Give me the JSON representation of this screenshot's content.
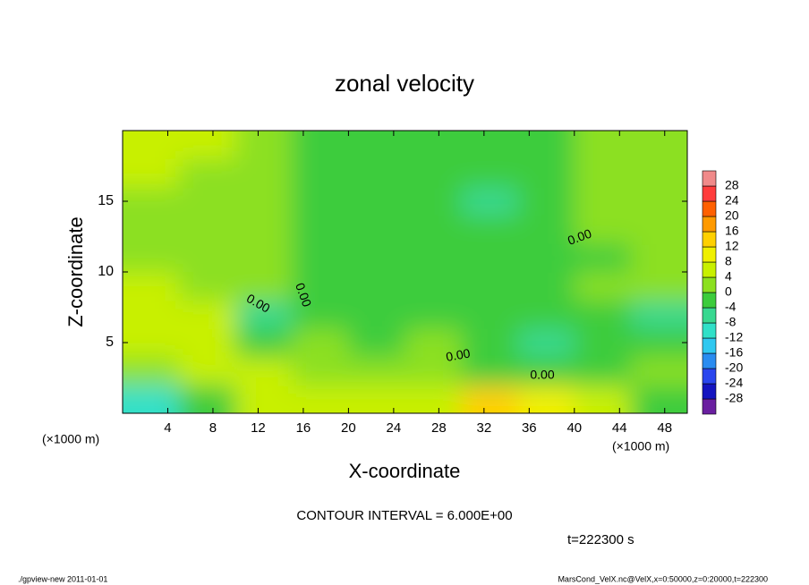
{
  "chart_data": {
    "type": "heatmap",
    "title": "zonal velocity",
    "xlabel": "X-coordinate",
    "ylabel": "Z-coordinate",
    "x_unit_label": "(×1000 m)",
    "y_unit_label": "(×1000 m)",
    "xlim": [
      0,
      50
    ],
    "ylim": [
      0,
      20
    ],
    "xticks": [
      4,
      8,
      12,
      16,
      20,
      24,
      28,
      32,
      36,
      40,
      44,
      48
    ],
    "yticks": [
      5,
      10,
      15
    ],
    "x": [
      2.5,
      7.5,
      12.5,
      17.5,
      22.5,
      27.5,
      32.5,
      37.5,
      42.5,
      47.5
    ],
    "y": [
      1,
      3,
      5,
      7,
      9,
      11,
      13,
      15,
      17,
      19
    ],
    "values": [
      [
        -10,
        -4,
        4,
        4,
        4,
        4,
        14,
        8,
        4,
        -2
      ],
      [
        2,
        4,
        4,
        2,
        2,
        0,
        -2,
        -2,
        -2,
        0
      ],
      [
        6,
        6,
        -4,
        2,
        -2,
        0,
        -4,
        -6,
        -2,
        -2
      ],
      [
        7,
        4,
        -6,
        -2,
        -2,
        -2,
        -3,
        -2,
        -2,
        -5
      ],
      [
        4,
        2,
        2,
        -2,
        -2,
        -3,
        -3,
        -3,
        0,
        2
      ],
      [
        2,
        2,
        2,
        -2,
        -2,
        -2,
        -3,
        -3,
        -1,
        2
      ],
      [
        3,
        3,
        2,
        -2,
        -3,
        -3,
        -4,
        -4,
        0,
        2
      ],
      [
        3,
        3,
        3,
        -3,
        -3,
        -4,
        -5,
        -4,
        0,
        1
      ],
      [
        4,
        3,
        2,
        -3,
        -3,
        -4,
        -4,
        -4,
        0,
        2
      ],
      [
        5,
        4,
        2,
        -2,
        -3,
        -3,
        -3,
        -3,
        1,
        3
      ]
    ],
    "colorbar_levels": [
      -28,
      -24,
      -20,
      -16,
      -12,
      -8,
      -4,
      0,
      4,
      8,
      12,
      16,
      20,
      24,
      28
    ],
    "colorbar_colors": [
      "#6a1fa0",
      "#1414c0",
      "#2a46ee",
      "#2a8cf0",
      "#30c8f0",
      "#30e0c8",
      "#38d890",
      "#3ccc3c",
      "#8ce020",
      "#c8f000",
      "#f0f000",
      "#ffd000",
      "#ff9a00",
      "#ff6000",
      "#ff3c3c",
      "#f08a8a"
    ],
    "contour_label": "0.00",
    "contour_interval_label": "CONTOUR INTERVAL = 6.000E+00",
    "time_label": "t=222300 s",
    "footer_left": "./gpview-new  2011-01-01",
    "footer_right": "MarsCond_VelX.nc@VelX,x=0:50000,z=0:20000,t=222300"
  }
}
